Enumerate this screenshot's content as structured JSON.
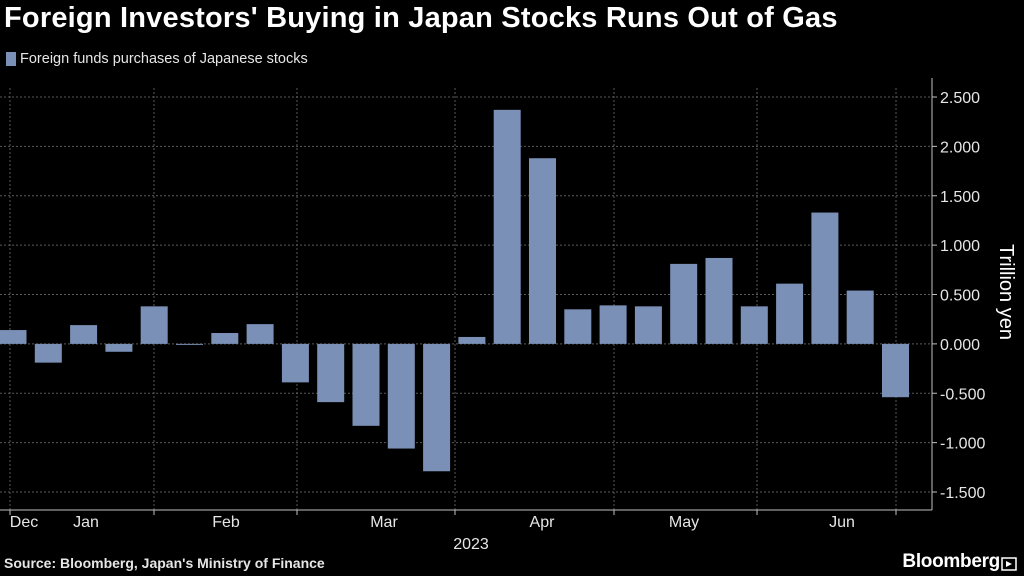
{
  "title": "Foreign Investors' Buying in Japan Stocks Runs Out of Gas",
  "legend": {
    "label": "Foreign funds purchases of Japanese stocks",
    "color": "#7a90b6"
  },
  "source": "Source: Bloomberg, Japan's Ministry of Finance",
  "brand": "Bloomberg",
  "chart_data": {
    "type": "bar",
    "series": [
      {
        "name": "Foreign funds purchases of Japanese stocks",
        "color": "#7a90b6",
        "values": [
          0.14,
          -0.19,
          0.19,
          -0.08,
          0.38,
          -0.01,
          0.11,
          0.2,
          -0.39,
          -0.59,
          -0.83,
          -1.06,
          -1.29,
          0.07,
          2.37,
          1.88,
          0.35,
          0.39,
          0.38,
          0.81,
          0.87,
          0.38,
          0.61,
          1.33,
          0.54,
          -0.54
        ]
      }
    ],
    "ylabel": "Trillion yen",
    "ylim": [
      -1.5,
      2.5
    ],
    "yticks": [
      2.5,
      2.0,
      1.5,
      1.0,
      0.5,
      0.0,
      -0.5,
      -1.0,
      -1.5
    ],
    "ytick_labels": [
      "2.500",
      "2.000",
      "1.500",
      "1.000",
      "0.500",
      "0.000",
      "-0.500",
      "-1.000",
      "-1.500"
    ],
    "month_labels": [
      "Dec",
      "Jan",
      "Feb",
      "Mar",
      "Apr",
      "May",
      "Jun"
    ],
    "year_label": "2023",
    "grid": true,
    "background": "#000000",
    "grid_color": "#5a5a5a"
  }
}
